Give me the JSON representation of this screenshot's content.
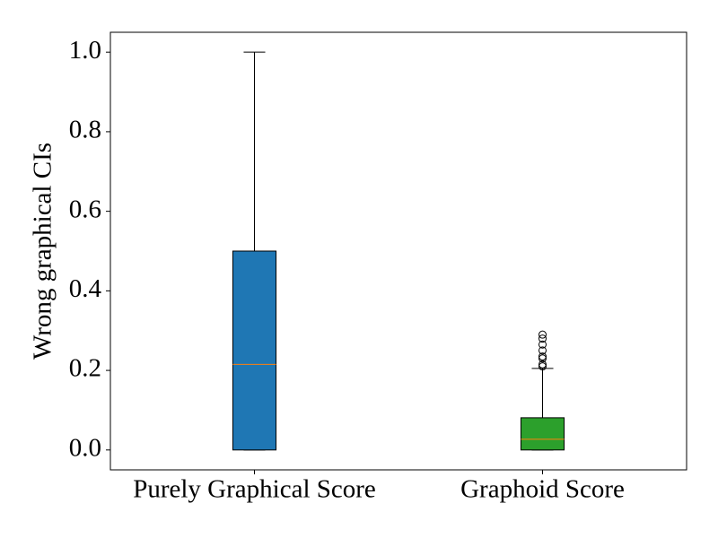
{
  "chart_data": {
    "type": "box",
    "y_label": "Wrong graphical CIs",
    "categories": [
      "Purely Graphical Score",
      "Graphoid Score"
    ],
    "boxes": [
      {
        "color": "#1f77b4",
        "whislo": 0,
        "q1": 0,
        "median": 0.215,
        "q3": 0.5,
        "whishi": 1.0,
        "fliers": []
      },
      {
        "color": "#2ca02c",
        "whislo": 0,
        "q1": 0,
        "median": 0.027,
        "q3": 0.081,
        "whishi": 0.205,
        "fliers": [
          0.21,
          0.215,
          0.23,
          0.235,
          0.25,
          0.265,
          0.28,
          0.29
        ]
      }
    ],
    "median_color": "#ff7f0e",
    "ylim": [
      -0.05,
      1.05
    ],
    "yticks": [
      {
        "value": 0,
        "label": "0.0"
      },
      {
        "value": 0.2,
        "label": "0.2"
      },
      {
        "value": 0.4,
        "label": "0.4"
      },
      {
        "value": 0.6,
        "label": "0.6"
      },
      {
        "value": 0.8,
        "label": "0.8"
      },
      {
        "value": 1.0,
        "label": "1.0"
      }
    ]
  }
}
